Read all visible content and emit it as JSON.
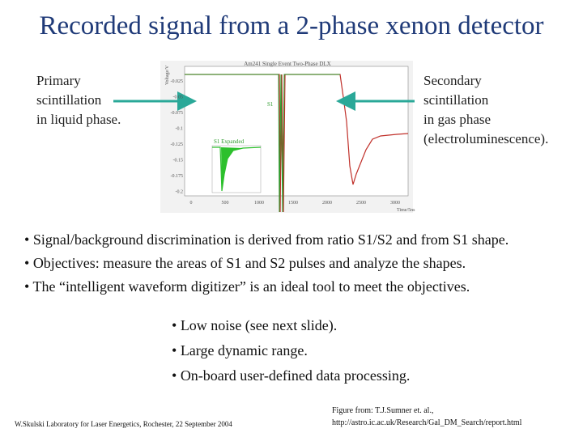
{
  "title": "Recorded signal from a 2-phase xenon detector",
  "left_note": [
    "Primary",
    "scintillation",
    "in liquid phase."
  ],
  "right_note": [
    "Secondary",
    "scintillation",
    "in gas phase",
    "(electroluminescence)."
  ],
  "figure": {
    "title": "Am241 Single Event Two-Phase DLX",
    "y_label": "Voltage/V",
    "x_label": "Time/5ns",
    "s1_label": "S1",
    "expanded_label": "S1 Expanded",
    "yticks": [
      "-0.025",
      "-0.05",
      "-0.075",
      "-0.1",
      "-0.125",
      "-0.15",
      "-0.175",
      "-0.2"
    ],
    "xticks": [
      "0",
      "500",
      "1000",
      "1500",
      "2000",
      "2500",
      "3000"
    ]
  },
  "bullets": [
    "Signal/background discrimination is derived from ratio S1/S2 and from S1 shape.",
    "Objectives: measure the areas of S1 and S2 pulses and analyze the shapes.",
    "The “intelligent waveform digitizer” is an ideal tool to meet the objectives."
  ],
  "sub_bullets": [
    "Low noise (see next slide).",
    "Large dynamic range.",
    "On-board user-defined data processing."
  ],
  "footer_left": "W.Skulski   Laboratory for Laser Energetics, Rochester, 22 September 2004",
  "footer_right": [
    "Figure from: T.J.Sumner et. al.,",
    "http://astro.ic.ac.uk/Research/Gal_DM_Search/report.html"
  ]
}
